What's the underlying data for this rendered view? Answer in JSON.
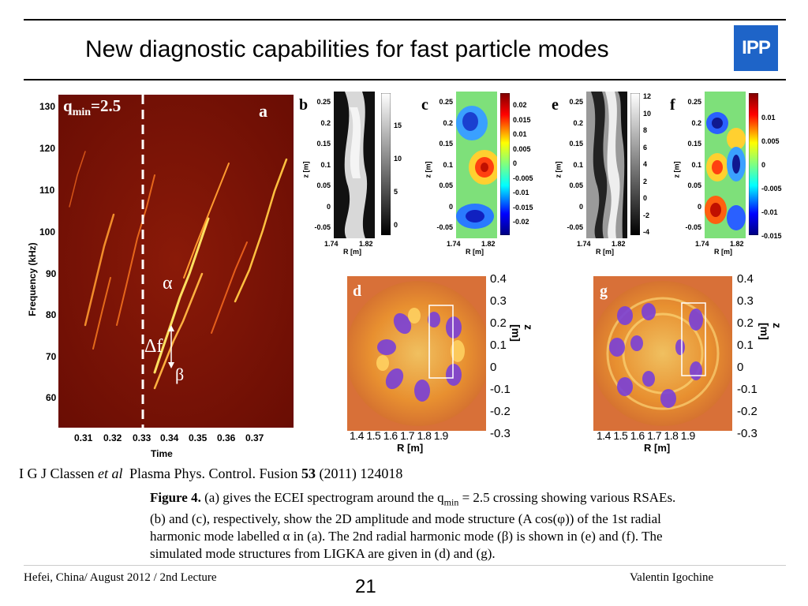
{
  "slide": {
    "title": "New diagnostic capabilities for fast particle modes",
    "logo_text": "IPP",
    "page_number": "21",
    "footer_left": "Hefei, China/ August 2012 / 2nd Lecture",
    "footer_right": "Valentin Igochine"
  },
  "figure": {
    "panel_a": {
      "label": "a",
      "qmin_label": "q",
      "qmin_sub": "min",
      "qmin_value": "=2.5",
      "ylabel": "Frequency (kHz)",
      "xlabel": "Time",
      "yticks": [
        "130",
        "120",
        "110",
        "100",
        "90",
        "80",
        "70",
        "60"
      ],
      "xticks": [
        "0.31",
        "0.32",
        "0.33",
        "0.34",
        "0.35",
        "0.36",
        "0.37"
      ],
      "alpha": "α",
      "beta": "β",
      "delta_f": "Δf"
    },
    "panel_b": {
      "label": "b",
      "zticks": [
        "0.25",
        "0.2",
        "0.15",
        "0.1",
        "0.05",
        "0",
        "-0.05"
      ],
      "rticks": [
        "1.74",
        "1.82"
      ],
      "cbar": [
        "15",
        "10",
        "5",
        "0"
      ],
      "xlabel": "R [m]",
      "ylabel": "z [m]"
    },
    "panel_c": {
      "label": "c",
      "zticks": [
        "0.25",
        "0.2",
        "0.15",
        "0.1",
        "0.05",
        "0",
        "-0.05"
      ],
      "rticks": [
        "1.74",
        "1.82"
      ],
      "cbar": [
        "0.02",
        "0.015",
        "0.01",
        "0.005",
        "0",
        "-0.005",
        "-0.01",
        "-0.015",
        "-0.02"
      ],
      "xlabel": "R [m]",
      "ylabel": "z [m]"
    },
    "panel_e": {
      "label": "e",
      "zticks": [
        "0.25",
        "0.2",
        "0.15",
        "0.1",
        "0.05",
        "0",
        "-0.05"
      ],
      "rticks": [
        "1.74",
        "1.82"
      ],
      "cbar": [
        "12",
        "10",
        "8",
        "6",
        "4",
        "2",
        "0",
        "-2",
        "-4"
      ],
      "xlabel": "R [m]",
      "ylabel": "z [m]"
    },
    "panel_f": {
      "label": "f",
      "zticks": [
        "0.25",
        "0.2",
        "0.15",
        "0.1",
        "0.05",
        "0",
        "-0.05"
      ],
      "rticks": [
        "1.74",
        "1.82"
      ],
      "cbar": [
        "0.01",
        "0.005",
        "0",
        "-0.005",
        "-0.01",
        "-0.015"
      ],
      "xlabel": "R [m]",
      "ylabel": "z [m]"
    },
    "panel_d": {
      "label": "d",
      "zticks": [
        "0.4",
        "0.3",
        "0.2",
        "0.1",
        "0",
        "-0.1",
        "-0.2",
        "-0.3"
      ],
      "rticks": [
        "1.4",
        "1.5",
        "1.6",
        "1.7",
        "1.8",
        "1.9"
      ],
      "xlabel": "R [m]",
      "ylabel": "z [m]"
    },
    "panel_g": {
      "label": "g",
      "zticks": [
        "0.4",
        "0.3",
        "0.2",
        "0.1",
        "0",
        "-0.1",
        "-0.2",
        "-0.3"
      ],
      "rticks": [
        "1.4",
        "1.5",
        "1.6",
        "1.7",
        "1.8",
        "1.9"
      ],
      "xlabel": "R [m]",
      "ylabel": "z [m]"
    }
  },
  "reference": {
    "authors": "I G J Classen",
    "et_al": "et al",
    "journal": "Plasma Phys. Control. Fusion",
    "volume": "53",
    "rest": "(2011) 124018"
  },
  "caption": {
    "label": "Figure 4.",
    "line1": "(a) gives the ECEI spectrogram around the q",
    "line1_sub": "min",
    "line1_end": " = 2.5 crossing showing various RSAEs.",
    "line2": "(b) and (c), respectively, show the 2D amplitude and mode structure (A cos(φ)) of the 1st radial",
    "line3": "harmonic mode labelled α in (a). The 2nd radial harmonic mode (β) is shown in (e) and (f). The",
    "line4": "simulated mode structures from LIGKA are given in (d) and (g)."
  }
}
